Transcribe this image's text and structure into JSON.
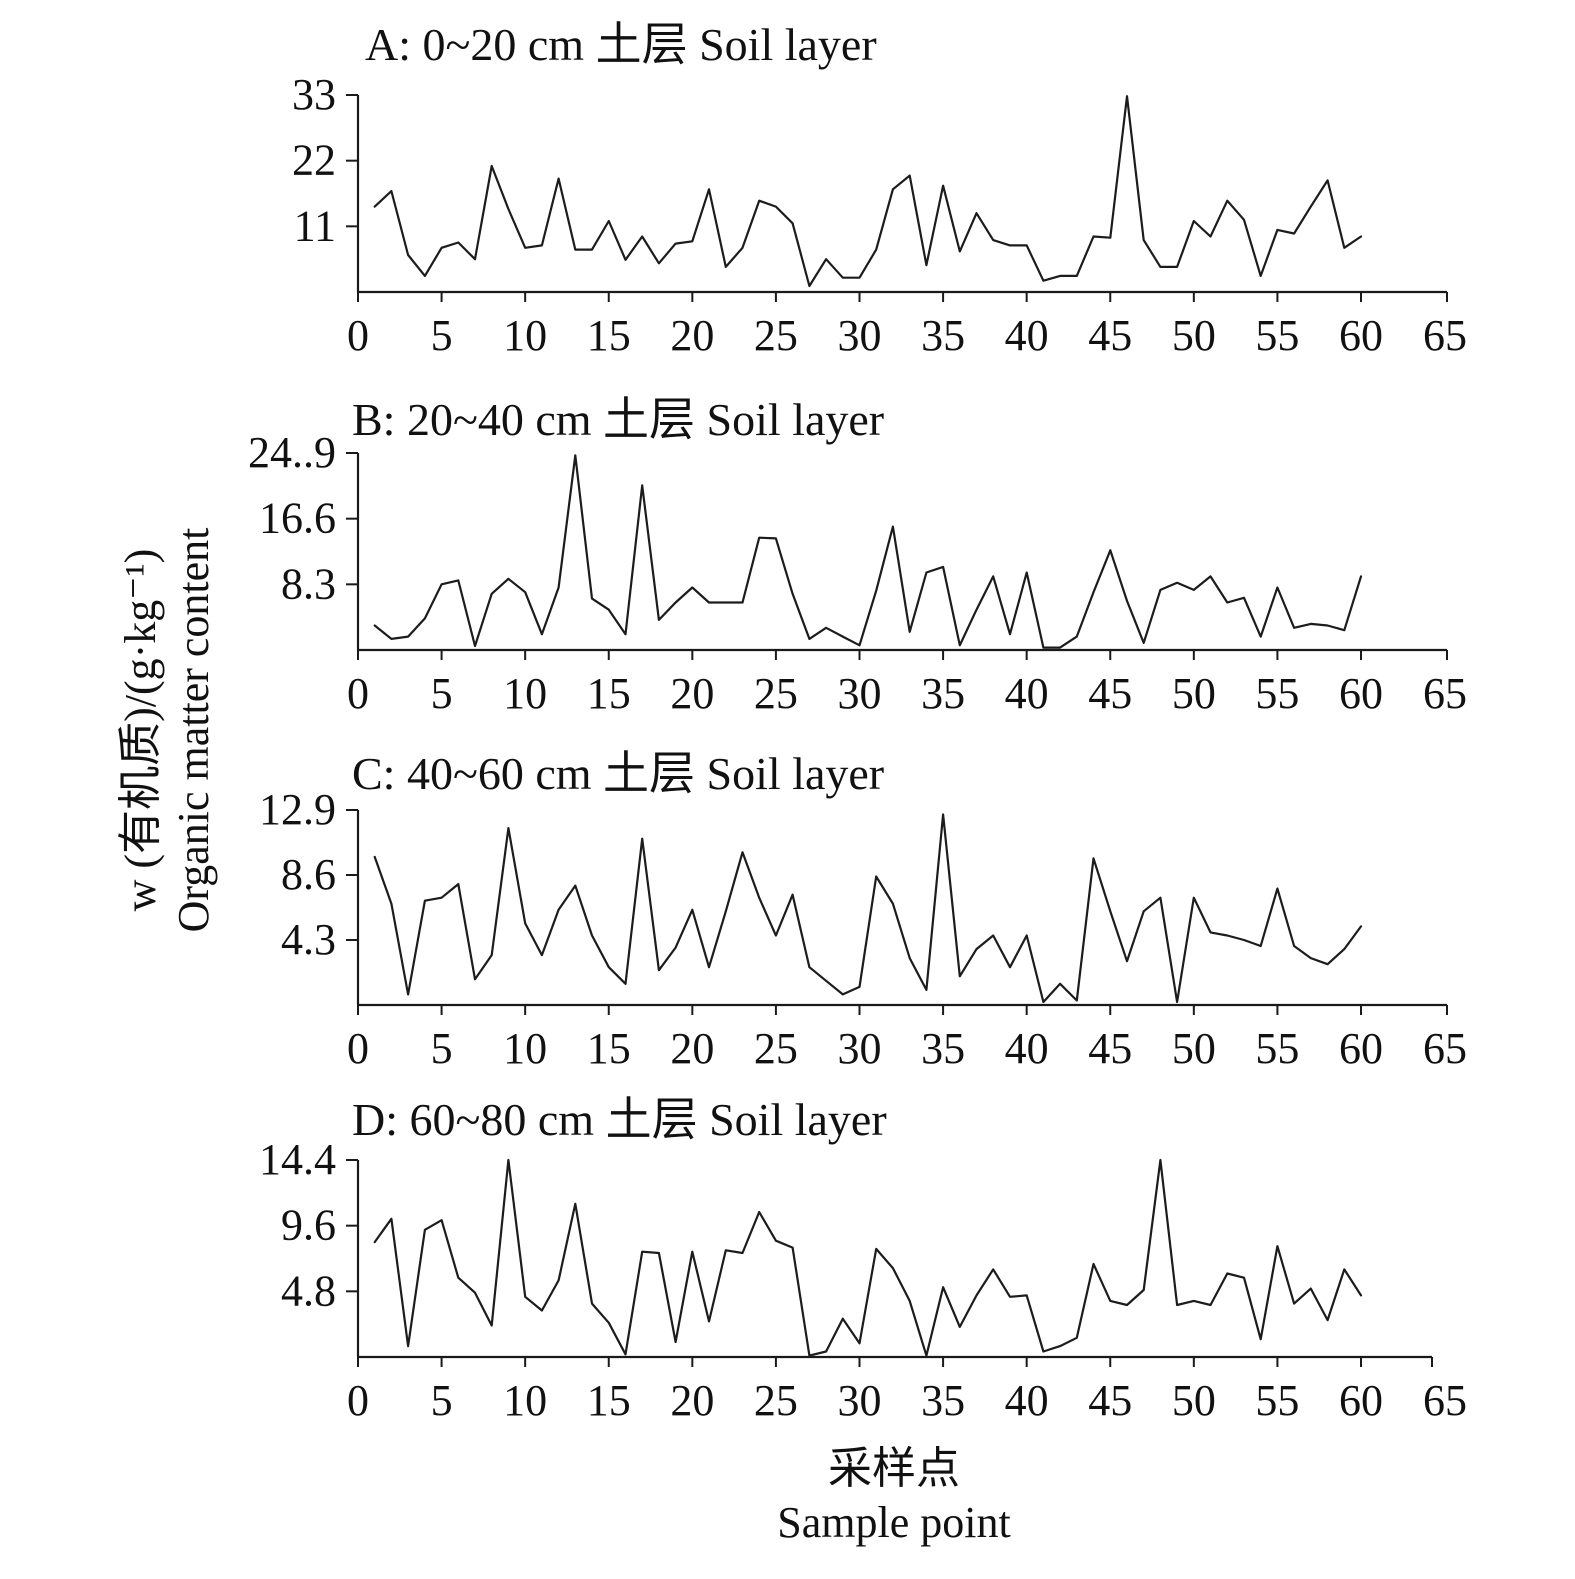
{
  "chart_data": {
    "type": "line",
    "xlabel_zh": "采样点",
    "xlabel_en": "Sample point",
    "ylabel_line1": "w (有机质)/(g·kg⁻¹)",
    "ylabel_line2": "Organic matter content",
    "panels": [
      {
        "title": "A: 0~20 cm 土层 Soil layer",
        "xlim": [
          0,
          65
        ],
        "x_ticks": [
          "0",
          "5",
          "10",
          "15",
          "20",
          "25",
          "30",
          "35",
          "40",
          "45",
          "50",
          "55",
          "60",
          "65"
        ],
        "ylim": [
          0,
          33
        ],
        "y_ticks": [
          {
            "value": 11,
            "label": "11"
          },
          {
            "value": 22,
            "label": "22"
          },
          {
            "value": 33,
            "label": "33"
          }
        ],
        "x": [
          1,
          2,
          3,
          4,
          5,
          6,
          7,
          8,
          9,
          10,
          11,
          12,
          13,
          14,
          15,
          16,
          17,
          18,
          19,
          20,
          21,
          22,
          23,
          24,
          25,
          26,
          27,
          28,
          29,
          30,
          31,
          32,
          33,
          34,
          35,
          36,
          37,
          38,
          39,
          40,
          41,
          42,
          43,
          44,
          45,
          46,
          47,
          48,
          49,
          50,
          51,
          52,
          53,
          54,
          55,
          56,
          57,
          58,
          59,
          60
        ],
        "y": [
          14.3,
          16.9,
          6.2,
          2.7,
          7.4,
          8.3,
          5.5,
          21.1,
          13.9,
          7.4,
          7.8,
          19.0,
          7.1,
          7.1,
          11.9,
          5.4,
          9.3,
          4.8,
          8.1,
          8.5,
          17.2,
          4.2,
          7.4,
          15.3,
          14.3,
          11.5,
          1.0,
          5.5,
          2.4,
          2.4,
          7.1,
          17.2,
          19.5,
          4.5,
          17.8,
          6.8,
          13.2,
          8.7,
          7.8,
          7.8,
          1.9,
          2.7,
          2.7,
          9.3,
          9.1,
          32.8,
          8.7,
          4.2,
          4.2,
          11.9,
          9.3,
          15.3,
          12.1,
          2.7,
          10.4,
          9.8,
          14.3,
          18.7,
          7.4,
          9.3
        ]
      },
      {
        "title": "B: 20~40 cm 土层 Soil layer",
        "xlim": [
          0,
          65
        ],
        "x_ticks": [
          "0",
          "5",
          "10",
          "15",
          "20",
          "25",
          "30",
          "35",
          "40",
          "45",
          "50",
          "55",
          "60",
          "65"
        ],
        "ylim": [
          0,
          24.9
        ],
        "y_ticks": [
          {
            "value": 8.3,
            "label": "8.3"
          },
          {
            "value": 16.6,
            "label": "16.6"
          },
          {
            "value": 24.9,
            "label": "24..9"
          }
        ],
        "x": [
          1,
          2,
          3,
          4,
          5,
          6,
          7,
          8,
          9,
          10,
          11,
          12,
          13,
          14,
          15,
          16,
          17,
          18,
          19,
          20,
          21,
          22,
          23,
          24,
          25,
          26,
          27,
          28,
          29,
          30,
          31,
          32,
          33,
          34,
          35,
          36,
          37,
          38,
          39,
          40,
          41,
          42,
          43,
          44,
          45,
          46,
          47,
          48,
          49,
          50,
          51,
          52,
          53,
          54,
          55,
          56,
          57,
          58,
          59,
          60
        ],
        "y": [
          3.1,
          1.4,
          1.7,
          4.0,
          8.3,
          8.8,
          0.5,
          7.1,
          9.0,
          7.3,
          2.0,
          7.9,
          24.6,
          6.5,
          5.1,
          2.0,
          20.8,
          3.8,
          6.0,
          7.9,
          6.0,
          6.0,
          6.0,
          14.2,
          14.1,
          7.1,
          1.4,
          2.8,
          1.7,
          0.6,
          7.5,
          15.6,
          2.3,
          9.8,
          10.5,
          0.6,
          5.1,
          9.3,
          2.0,
          9.8,
          0.3,
          0.3,
          1.7,
          7.3,
          12.6,
          6.2,
          0.9,
          7.6,
          8.5,
          7.6,
          9.3,
          6.0,
          6.6,
          1.7,
          7.9,
          2.8,
          3.3,
          3.1,
          2.5,
          9.3
        ]
      },
      {
        "title": "C: 40~60 cm 土层 Soil layer",
        "xlim": [
          0,
          65
        ],
        "x_ticks": [
          "0",
          "5",
          "10",
          "15",
          "20",
          "25",
          "30",
          "35",
          "40",
          "45",
          "50",
          "55",
          "60",
          "65"
        ],
        "ylim": [
          0,
          12.9
        ],
        "y_ticks": [
          {
            "value": 4.3,
            "label": "4.3"
          },
          {
            "value": 8.6,
            "label": "8.6"
          },
          {
            "value": 12.9,
            "label": "12.9"
          }
        ],
        "x": [
          1,
          2,
          3,
          4,
          5,
          6,
          7,
          8,
          9,
          10,
          11,
          12,
          13,
          14,
          15,
          16,
          17,
          18,
          19,
          20,
          21,
          22,
          23,
          24,
          25,
          26,
          27,
          28,
          29,
          30,
          31,
          32,
          33,
          34,
          35,
          36,
          37,
          38,
          39,
          40,
          41,
          42,
          43,
          44,
          45,
          46,
          47,
          48,
          49,
          50,
          51,
          52,
          53,
          54,
          55,
          56,
          57,
          58,
          59,
          60
        ],
        "y": [
          9.8,
          6.7,
          0.7,
          6.9,
          7.1,
          8.0,
          1.7,
          3.3,
          11.7,
          5.4,
          3.3,
          6.3,
          7.9,
          4.6,
          2.5,
          1.4,
          11.0,
          2.3,
          3.8,
          6.3,
          2.5,
          6.2,
          10.1,
          7.1,
          4.6,
          7.3,
          2.5,
          1.6,
          0.7,
          1.2,
          8.5,
          6.7,
          3.1,
          1.0,
          12.6,
          1.9,
          3.7,
          4.6,
          2.5,
          4.6,
          0.2,
          1.4,
          0.3,
          9.7,
          6.2,
          2.9,
          6.2,
          7.1,
          0.2,
          7.1,
          4.8,
          4.6,
          4.3,
          3.9,
          7.7,
          3.9,
          3.1,
          2.7,
          3.7,
          5.2
        ]
      },
      {
        "title": "D: 60~80 cm 土层 Soil layer",
        "xlim": [
          0,
          65
        ],
        "x_ticks": [
          "0",
          "5",
          "10",
          "15",
          "20",
          "25",
          "30",
          "35",
          "40",
          "45",
          "50",
          "55",
          "60",
          "65"
        ],
        "ylim": [
          0,
          14.4
        ],
        "y_ticks": [
          {
            "value": 4.8,
            "label": "4.8"
          },
          {
            "value": 9.6,
            "label": "9.6"
          },
          {
            "value": 14.4,
            "label": "14.4"
          }
        ],
        "x": [
          1,
          2,
          3,
          4,
          5,
          6,
          7,
          8,
          9,
          10,
          11,
          12,
          13,
          14,
          15,
          16,
          17,
          18,
          19,
          20,
          21,
          22,
          23,
          24,
          25,
          26,
          27,
          28,
          29,
          30,
          31,
          32,
          33,
          34,
          35,
          36,
          37,
          38,
          39,
          40,
          41,
          42,
          43,
          44,
          45,
          46,
          47,
          48,
          49,
          50,
          51,
          52,
          53,
          54,
          55,
          56,
          57,
          58,
          59,
          60
        ],
        "y": [
          8.4,
          10.1,
          0.8,
          9.3,
          10.0,
          5.8,
          4.7,
          2.3,
          14.4,
          4.4,
          3.4,
          5.6,
          11.2,
          3.9,
          2.5,
          0.2,
          7.7,
          7.6,
          1.1,
          7.7,
          2.6,
          7.8,
          7.6,
          10.6,
          8.5,
          8.0,
          0.1,
          0.4,
          2.8,
          1.0,
          7.9,
          6.5,
          4.1,
          0.1,
          5.1,
          2.2,
          4.5,
          6.4,
          4.4,
          4.5,
          0.4,
          0.8,
          1.4,
          6.8,
          4.1,
          3.8,
          4.9,
          14.4,
          3.8,
          4.1,
          3.8,
          6.1,
          5.8,
          1.3,
          8.1,
          3.9,
          5.0,
          2.7,
          6.4,
          4.5
        ]
      }
    ]
  }
}
